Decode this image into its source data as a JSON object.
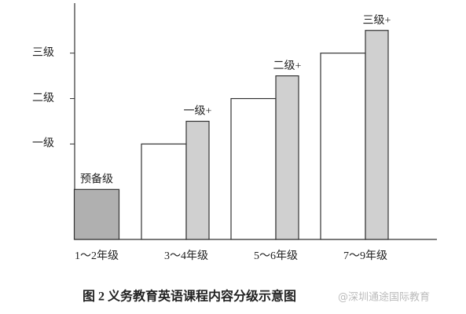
{
  "chart_data": {
    "type": "bar",
    "title": "图 2  义务教育英语课程内容分级示意图",
    "annotation": "@深圳通途国际教育",
    "categories": [
      "1～2年级",
      "3～4年级",
      "5～6年级",
      "7～9年级"
    ],
    "ylim": [
      -1.1,
      4.1
    ],
    "yticks": [
      {
        "value": 1,
        "label": "一级"
      },
      {
        "value": 2,
        "label": "二级"
      },
      {
        "value": 3,
        "label": "三级"
      }
    ],
    "grid": false,
    "series": [
      {
        "color": "#b0b0b0",
        "values": [
          0,
          null,
          null,
          null
        ],
        "value_labels": [
          "预备级",
          null,
          null,
          null
        ]
      },
      {
        "color": "#ffffff",
        "values": [
          null,
          1,
          2,
          3
        ]
      },
      {
        "color": "#d0d0d0",
        "values": [
          null,
          1.5,
          2.5,
          3.5
        ],
        "value_labels": [
          null,
          "一级+",
          "二级+",
          "三级+"
        ]
      }
    ]
  }
}
